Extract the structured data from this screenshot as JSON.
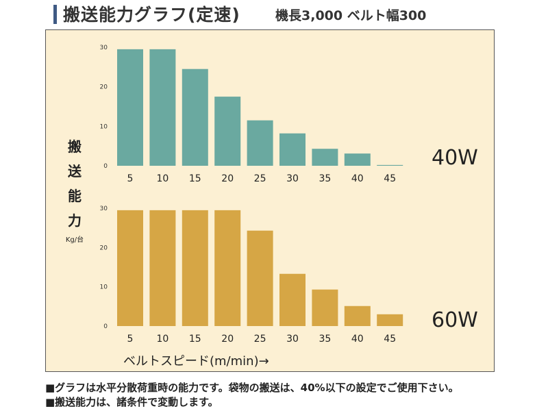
{
  "header": {
    "title": "搬送能力グラフ(定速)",
    "subtitle": "機長3,000 ベルト幅300"
  },
  "yaxis": {
    "label_chars": [
      "搬",
      "送",
      "能",
      "力"
    ],
    "unit": "Kg/台"
  },
  "xaxis": {
    "label": "ベルトスピード(m/min)→"
  },
  "notes": [
    "■グラフは水平分散荷重時の能力です。袋物の搬送は、40%以下の設定でご使用下さい。",
    "■搬送能力は、諸条件で変動します。"
  ],
  "chart_data": [
    {
      "type": "bar",
      "label": "40W",
      "color": "#6aa9a0",
      "categories": [
        "5",
        "10",
        "15",
        "20",
        "25",
        "30",
        "35",
        "40",
        "45"
      ],
      "values": [
        29.5,
        29.5,
        24.5,
        17.5,
        11.5,
        8.2,
        4.3,
        3.1,
        0.2
      ],
      "ylim": [
        0,
        30
      ],
      "yticks": [
        "0",
        "10",
        "20",
        "30"
      ]
    },
    {
      "type": "bar",
      "label": "60W",
      "color": "#d6a645",
      "categories": [
        "5",
        "10",
        "15",
        "20",
        "25",
        "30",
        "35",
        "40",
        "45"
      ],
      "values": [
        29.5,
        29.5,
        29.5,
        29.5,
        24.3,
        13.3,
        9.3,
        5.1,
        3.0
      ],
      "ylim": [
        0,
        30
      ],
      "yticks": [
        "0",
        "10",
        "20",
        "30"
      ]
    }
  ]
}
